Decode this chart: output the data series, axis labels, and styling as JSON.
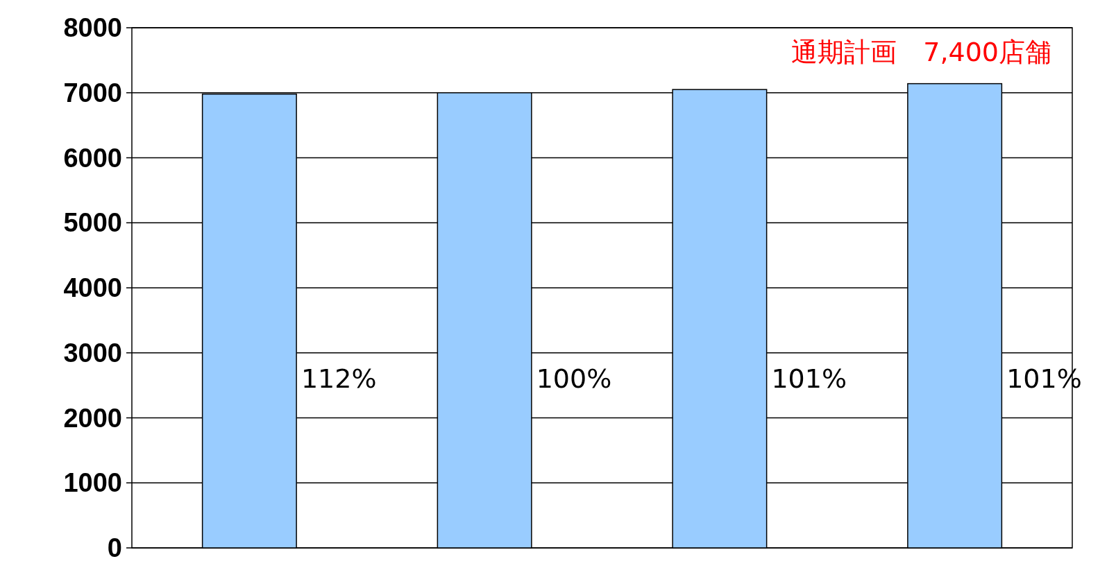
{
  "chart_data": {
    "type": "bar",
    "categories": [
      null,
      null,
      null,
      null
    ],
    "values": [
      6980,
      7000,
      7050,
      7140
    ],
    "color": "#99ccff",
    "ylim": [
      0,
      8000
    ],
    "yticks": [
      0,
      1000,
      2000,
      3000,
      4000,
      5000,
      6000,
      7000,
      8000
    ],
    "grid": "y",
    "annotations": [
      "112%",
      "100%",
      "101%",
      "101%",
      "通期計画　7,400店舗"
    ]
  }
}
